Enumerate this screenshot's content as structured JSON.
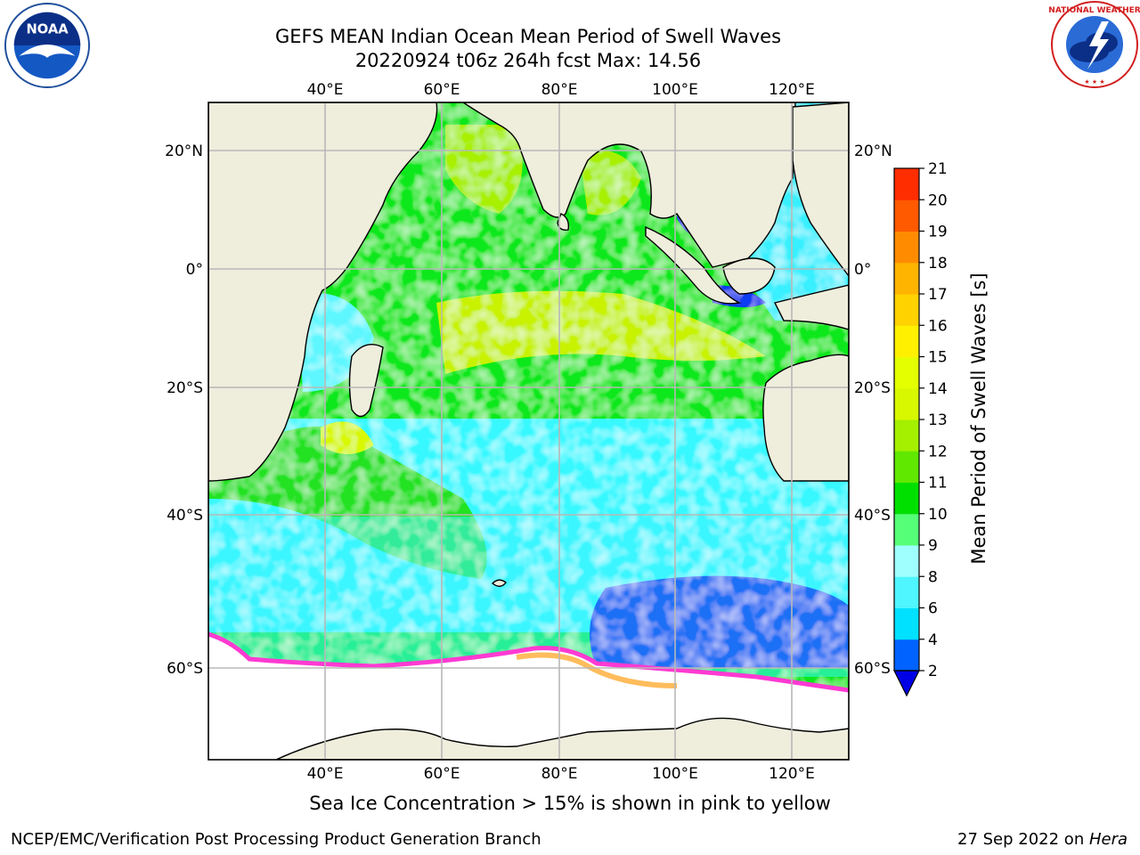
{
  "title_line1": "GEFS MEAN Indian Ocean Mean Period of Swell Waves",
  "title_line2": "20220924 t06z 264h fcst   Max: 14.56",
  "logos": {
    "left": {
      "name": "NOAA",
      "icon": "noaa-logo"
    },
    "right": {
      "name": "NATIONAL WEATHER SERVICE",
      "icon": "nws-logo"
    }
  },
  "map": {
    "lon_ticks_top": [
      "40°E",
      "60°E",
      "80°E",
      "100°E",
      "120°E"
    ],
    "lon_ticks_bottom": [
      "40°E",
      "60°E",
      "80°E",
      "100°E",
      "120°E"
    ],
    "lat_ticks_left": [
      "20°N",
      "0°",
      "20°S",
      "40°S",
      "60°S"
    ],
    "lat_ticks_right": [
      "20°N",
      "0°",
      "20°S",
      "40°S",
      "60°S"
    ],
    "lon_range": [
      20,
      130
    ],
    "lat_range": [
      -70,
      27
    ],
    "land_color": "#efeddc",
    "ice_color": "#ffffff"
  },
  "colorbar": {
    "label": "Mean Period of Swell Waves [s]",
    "ticks": [
      "2",
      "4",
      "6",
      "8",
      "9",
      "10",
      "11",
      "12",
      "13",
      "14",
      "15",
      "16",
      "17",
      "18",
      "19",
      "20",
      "21"
    ],
    "colors": [
      "#0063ff",
      "#00e1ff",
      "#4ff5ff",
      "#9fffff",
      "#55ff77",
      "#00e000",
      "#60e800",
      "#a4f000",
      "#d8f800",
      "#e4ff00",
      "#fff000",
      "#ffd200",
      "#ffb400",
      "#ff8c00",
      "#ff5a00",
      "#ff2d00",
      "#ff0000"
    ],
    "under_color": "#0000e6"
  },
  "caption": "Sea Ice Concentration > 15% is shown in pink to yellow",
  "footer_left": "NCEP/EMC/Verification Post Processing Product Generation Branch",
  "footer_right_prefix": "27 Sep 2022 on ",
  "footer_right_host": "Hera"
}
